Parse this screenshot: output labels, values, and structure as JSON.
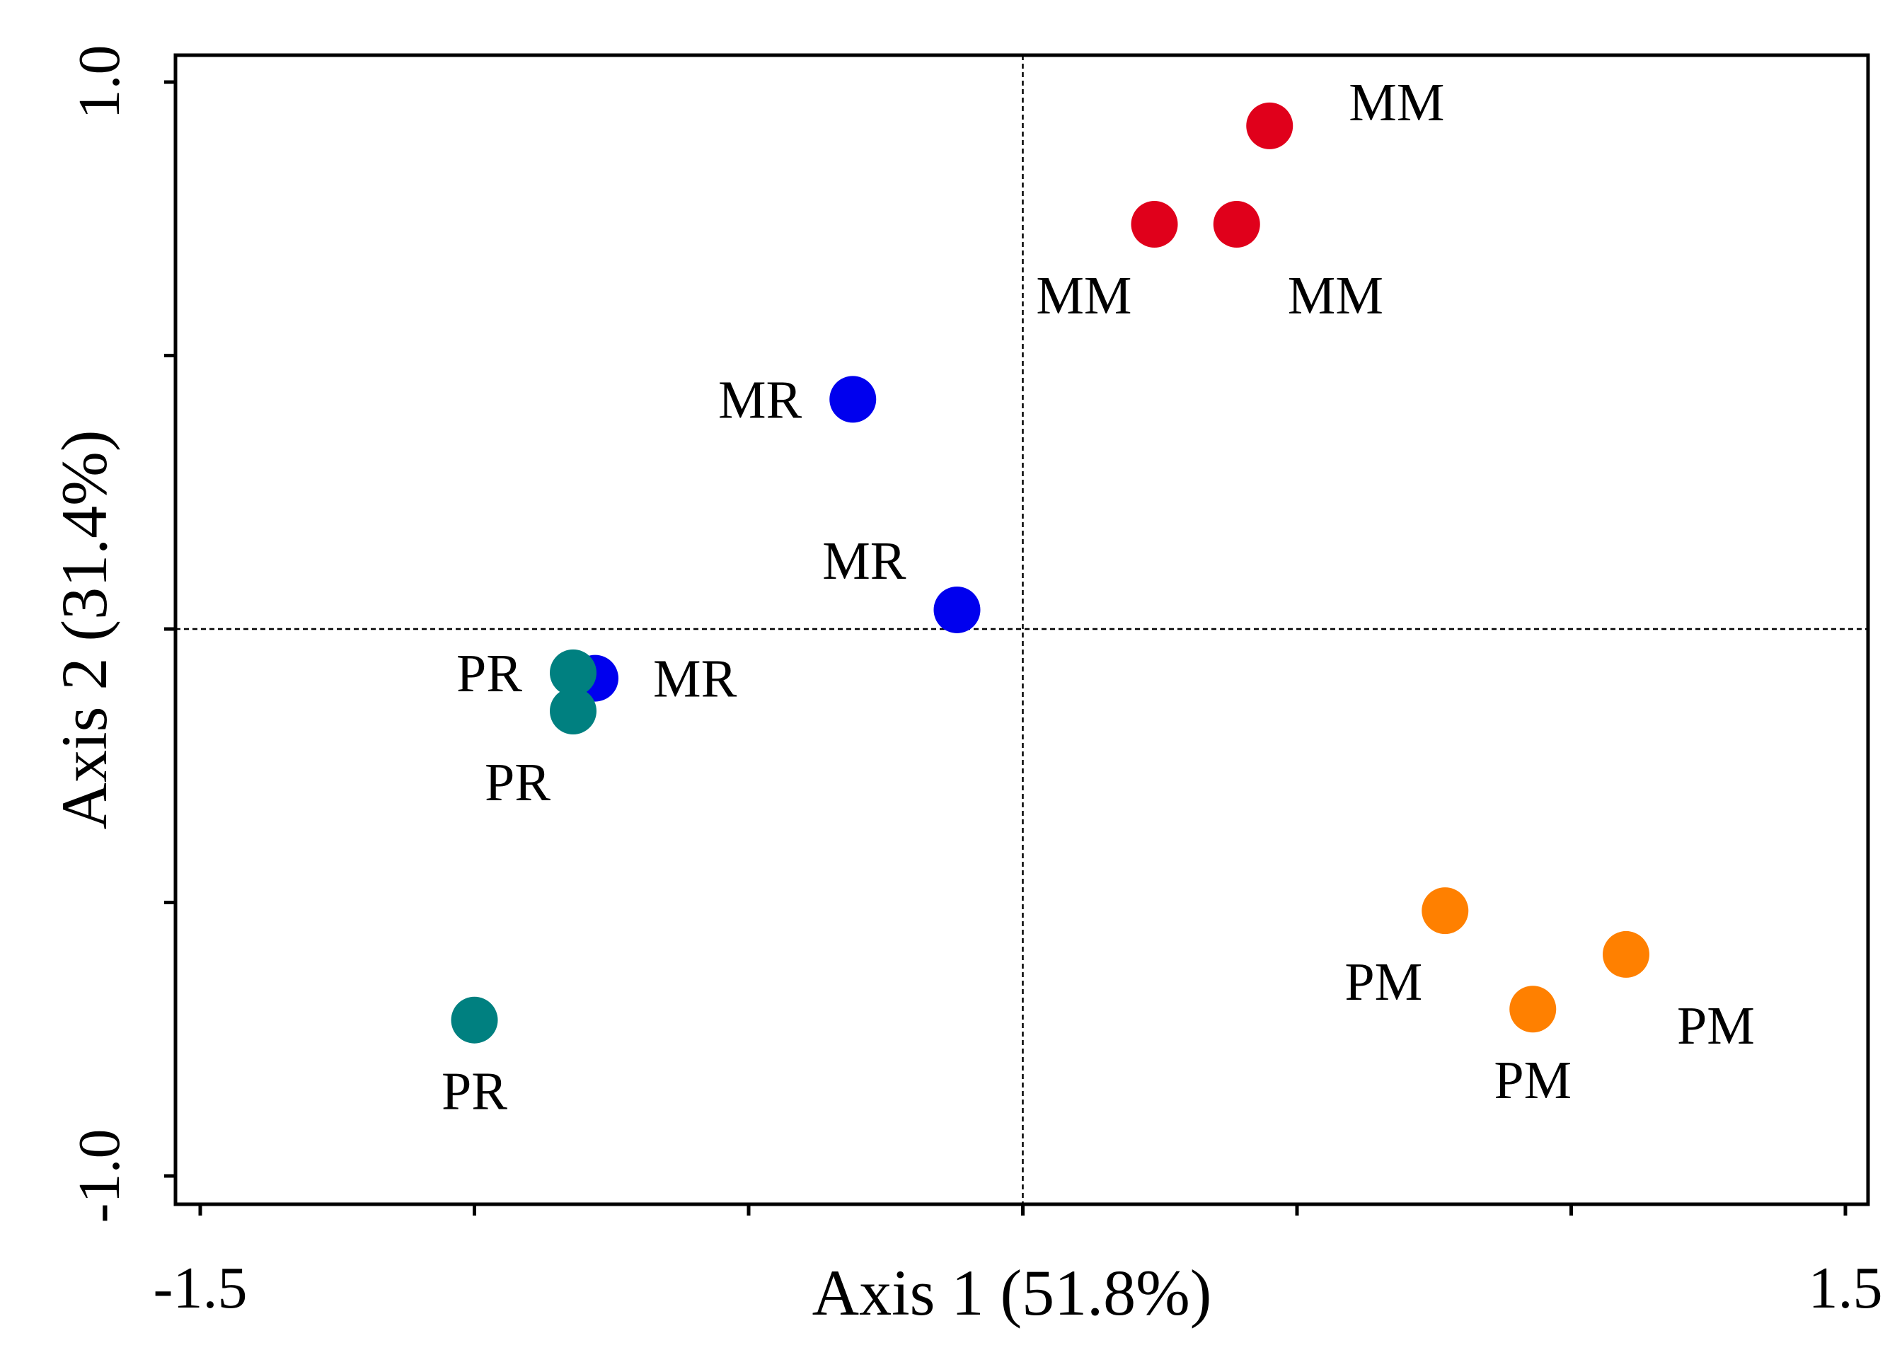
{
  "chart_data": {
    "type": "scatter",
    "title": "",
    "xlabel": "Axis 1 (51.8%)",
    "ylabel": "Axis 2 (31.4%)",
    "xlim": [
      -1.5,
      1.5
    ],
    "ylim": [
      -1.0,
      1.0
    ],
    "x_tick_values": [
      -1.5,
      -1.0,
      -0.5,
      0.0,
      0.5,
      1.0,
      1.5
    ],
    "y_tick_values": [
      -1.0,
      -0.5,
      0.0,
      0.5,
      1.0
    ],
    "x_tick_labels": [
      {
        "value": -1.5,
        "label": "-1.5"
      },
      {
        "value": 1.5,
        "label": "1.5"
      }
    ],
    "y_tick_labels": [
      {
        "value": 1.0,
        "label": "1.0"
      },
      {
        "value": -1.0,
        "label": "-1.0"
      }
    ],
    "reference_lines": {
      "x": 0.0,
      "y": 0.0,
      "style": "dashed"
    },
    "grid": false,
    "series": [
      {
        "name": "MM",
        "color": "#e0001b",
        "points": [
          {
            "x": 0.45,
            "y": 0.92,
            "label": "MM",
            "label_pos": "upper-right"
          },
          {
            "x": 0.24,
            "y": 0.74,
            "label": "MM",
            "label_pos": "lower-left"
          },
          {
            "x": 0.39,
            "y": 0.74,
            "label": "MM",
            "label_pos": "lower-right"
          }
        ]
      },
      {
        "name": "MR",
        "color": "#0000ee",
        "points": [
          {
            "x": -0.31,
            "y": 0.42,
            "label": "MR",
            "label_pos": "left"
          },
          {
            "x": -0.12,
            "y": 0.035,
            "label": "MR",
            "label_pos": "upper-left"
          },
          {
            "x": -0.78,
            "y": -0.09,
            "label": "MR",
            "label_pos": "right"
          }
        ]
      },
      {
        "name": "PR",
        "color": "#008080",
        "points": [
          {
            "x": -0.82,
            "y": -0.08,
            "label": "PR",
            "label_pos": "left"
          },
          {
            "x": -0.82,
            "y": -0.15,
            "label": "PR",
            "label_pos": "lower-left"
          },
          {
            "x": -1.0,
            "y": -0.715,
            "label": "PR",
            "label_pos": "below"
          }
        ]
      },
      {
        "name": "PM",
        "color": "#ff8000",
        "points": [
          {
            "x": 0.77,
            "y": -0.515,
            "label": "PM",
            "label_pos": "lower-left"
          },
          {
            "x": 1.1,
            "y": -0.595,
            "label": "PM",
            "label_pos": "lower-right"
          },
          {
            "x": 0.93,
            "y": -0.695,
            "label": "PM",
            "label_pos": "below"
          }
        ]
      }
    ]
  }
}
